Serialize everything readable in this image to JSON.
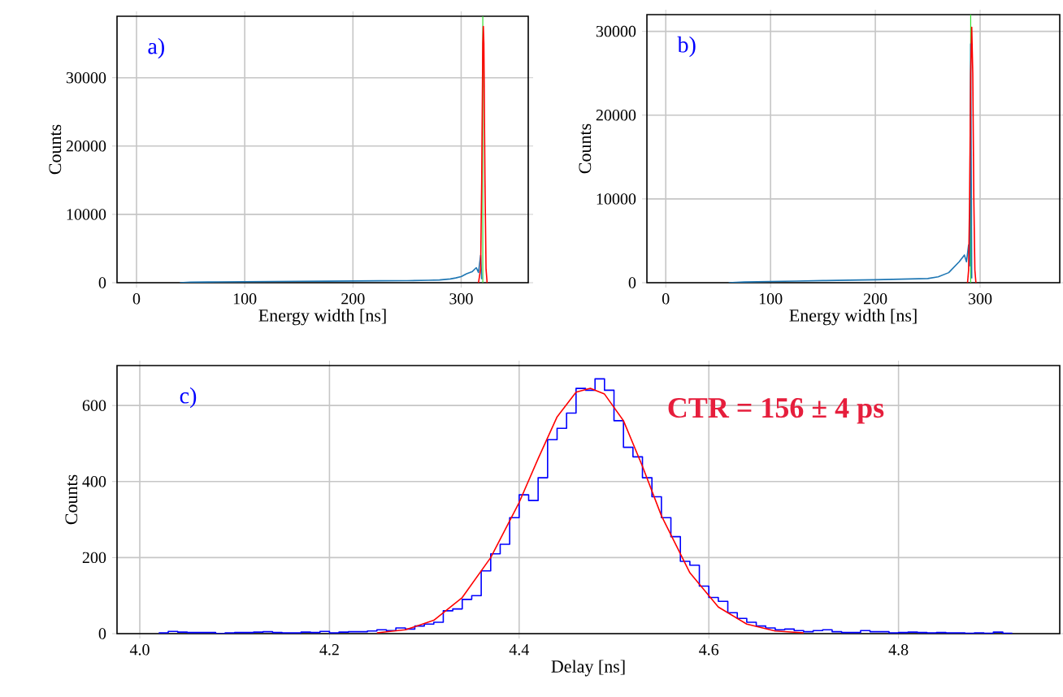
{
  "chart_data": [
    {
      "type": "line",
      "xlabel": "Energy width [ns]",
      "ylabel": "Counts",
      "annotations": [
        "a)"
      ],
      "xlim": [
        -18,
        362
      ],
      "ylim": [
        0,
        39000
      ],
      "xticks": [
        0,
        100,
        200,
        300
      ],
      "yticks": [
        0,
        10000,
        20000,
        30000
      ],
      "grid": true,
      "ref_lines": [
        {
          "axis": "x",
          "value": 320,
          "color": "#33dd33"
        }
      ],
      "series": [
        {
          "color": "#1f77b4",
          "x": [
            40,
            50,
            75,
            100,
            125,
            150,
            175,
            200,
            225,
            250,
            270,
            280,
            290,
            295,
            300,
            305,
            310,
            314,
            316,
            318,
            319
          ],
          "values": [
            0,
            80,
            120,
            150,
            170,
            200,
            220,
            250,
            280,
            300,
            350,
            400,
            550,
            700,
            900,
            1300,
            1600,
            2200,
            1500,
            4000,
            500
          ]
        },
        {
          "color": "#ff0000",
          "x": [
            316,
            318,
            319,
            320,
            320.5,
            321,
            322,
            323,
            324
          ],
          "values": [
            0,
            2000,
            15000,
            35000,
            37500,
            35000,
            15000,
            2000,
            0
          ]
        }
      ]
    },
    {
      "type": "line",
      "xlabel": "Energy width [ns]",
      "ylabel": "Counts",
      "annotations": [
        "b)"
      ],
      "xlim": [
        -18,
        376
      ],
      "ylim": [
        0,
        32000
      ],
      "xticks": [
        0,
        100,
        200,
        300
      ],
      "yticks": [
        0,
        10000,
        20000,
        30000
      ],
      "grid": true,
      "ref_lines": [
        {
          "axis": "x",
          "value": 291,
          "color": "#33dd33"
        }
      ],
      "series": [
        {
          "color": "#1f77b4",
          "x": [
            60,
            75,
            100,
            125,
            150,
            175,
            200,
            225,
            250,
            260,
            270,
            280,
            285,
            287,
            289,
            290,
            291,
            292
          ],
          "values": [
            0,
            80,
            150,
            200,
            250,
            300,
            350,
            420,
            500,
            700,
            1200,
            2500,
            3300,
            2500,
            4500,
            2000,
            28500,
            500
          ]
        },
        {
          "color": "#ff0000",
          "x": [
            288,
            289,
            290,
            291,
            292,
            293,
            294,
            295,
            296
          ],
          "values": [
            0,
            1500,
            10000,
            25000,
            30500,
            25000,
            10000,
            1500,
            0
          ]
        }
      ]
    },
    {
      "type": "histogram",
      "xlabel": "Delay [ns]",
      "ylabel": "Counts",
      "annotations": [
        "c)",
        "CTR = 156 ± 4 ps"
      ],
      "xlim": [
        3.976,
        4.97
      ],
      "ylim": [
        0,
        705
      ],
      "xticks": [
        {
          "value": 4.0,
          "label": "4.0"
        },
        4.2,
        4.4,
        4.6,
        4.8
      ],
      "yticks": [
        0,
        200,
        400,
        600
      ],
      "grid": true,
      "series": [
        {
          "type": "histogram",
          "color": "#0000ff",
          "bins": [
            4.02,
            4.03,
            4.04,
            4.05,
            4.06,
            4.07,
            4.08,
            4.09,
            4.1,
            4.11,
            4.12,
            4.13,
            4.14,
            4.15,
            4.16,
            4.17,
            4.18,
            4.19,
            4.2,
            4.21,
            4.22,
            4.23,
            4.24,
            4.25,
            4.26,
            4.27,
            4.28,
            4.29,
            4.3,
            4.31,
            4.32,
            4.33,
            4.34,
            4.35,
            4.36,
            4.37,
            4.38,
            4.39,
            4.4,
            4.41,
            4.42,
            4.43,
            4.44,
            4.45,
            4.46,
            4.47,
            4.48,
            4.49,
            4.5,
            4.51,
            4.52,
            4.53,
            4.54,
            4.55,
            4.56,
            4.57,
            4.58,
            4.59,
            4.6,
            4.61,
            4.62,
            4.63,
            4.64,
            4.65,
            4.66,
            4.67,
            4.68,
            4.69,
            4.7,
            4.71,
            4.72,
            4.73,
            4.74,
            4.75,
            4.76,
            4.77,
            4.78,
            4.79,
            4.8,
            4.81,
            4.82,
            4.83,
            4.84,
            4.85,
            4.86,
            4.87,
            4.88,
            4.89,
            4.9,
            4.91,
            4.92
          ],
          "values": [
            2,
            6,
            4,
            3,
            3,
            3,
            0,
            2,
            3,
            3,
            4,
            5,
            3,
            2,
            2,
            4,
            3,
            6,
            2,
            4,
            5,
            5,
            7,
            10,
            8,
            15,
            12,
            20,
            25,
            30,
            60,
            65,
            90,
            100,
            165,
            210,
            235,
            305,
            365,
            350,
            410,
            510,
            540,
            580,
            645,
            640,
            670,
            640,
            560,
            490,
            465,
            410,
            360,
            305,
            255,
            190,
            180,
            125,
            95,
            85,
            55,
            40,
            30,
            20,
            15,
            10,
            12,
            8,
            5,
            8,
            10,
            5,
            3,
            3,
            8,
            5,
            5,
            2,
            3,
            4,
            3,
            2,
            3,
            2,
            2,
            1,
            2,
            1,
            4,
            1
          ]
        },
        {
          "type": "line",
          "color": "#ff0000",
          "x": [
            4.25,
            4.28,
            4.31,
            4.34,
            4.37,
            4.4,
            4.42,
            4.44,
            4.46,
            4.475,
            4.49,
            4.51,
            4.53,
            4.55,
            4.58,
            4.61,
            4.64,
            4.67,
            4.7
          ],
          "values": [
            2,
            10,
            35,
            95,
            200,
            345,
            460,
            570,
            635,
            645,
            630,
            560,
            440,
            310,
            160,
            70,
            25,
            7,
            2
          ]
        }
      ]
    }
  ]
}
